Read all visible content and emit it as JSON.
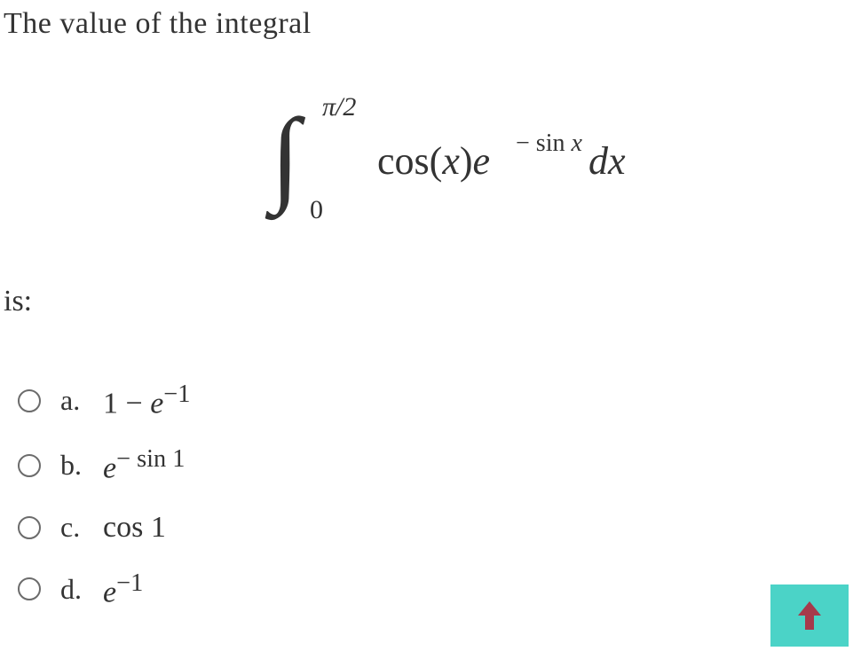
{
  "question": {
    "prompt_line1": "The value of the integral",
    "prompt_line2": "is:",
    "integral": {
      "lower_limit": "0",
      "upper_limit": "π/2",
      "integrand_base": "cos(x)e",
      "integrand_exponent": "− sin x",
      "differential": "dx"
    }
  },
  "options": [
    {
      "letter": "a.",
      "math_html": "1 − <i>e</i><sup>−1</sup>"
    },
    {
      "letter": "b.",
      "math_html": "<i>e</i><sup>− sin 1</sup>"
    },
    {
      "letter": "c.",
      "math_html": "cos 1"
    },
    {
      "letter": "d.",
      "math_html": "<i>e</i><sup>−1</sup>"
    }
  ],
  "style": {
    "text_color": "#333333",
    "radio_border": "#6b6b6b",
    "scroll_button_bg": "#4bd3c7",
    "arrow_color": "#a63a4b",
    "font_size_body": 34,
    "font_size_option": 32
  }
}
